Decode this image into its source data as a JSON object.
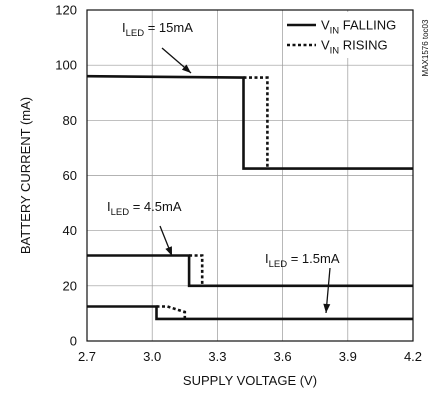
{
  "chart_data": {
    "type": "line",
    "title": "",
    "xlabel": "SUPPLY VOLTAGE (V)",
    "ylabel": "BATTERY CURRENT (mA)",
    "xlim": [
      2.7,
      4.2
    ],
    "ylim": [
      0,
      120
    ],
    "x_ticks": [
      "2.7",
      "3.0",
      "3.3",
      "3.6",
      "3.9",
      "4.2"
    ],
    "y_ticks": [
      "0",
      "20",
      "40",
      "60",
      "80",
      "100",
      "120"
    ],
    "grid": true,
    "legend_position": "top-right",
    "legend": [
      {
        "main": "V",
        "sub": "IN",
        "rest": " FALLING",
        "style": "solid"
      },
      {
        "main": "V",
        "sub": "IN",
        "rest": " RISING",
        "style": "dotted"
      }
    ],
    "part_number": "MAX1576 toc03",
    "annotations": [
      {
        "main": "I",
        "sub": "LED",
        "rest": " = 15mA"
      },
      {
        "main": "I",
        "sub": "LED",
        "rest": " = 4.5mA"
      },
      {
        "main": "I",
        "sub": "LED",
        "rest": " = 1.5mA"
      }
    ],
    "series": [
      {
        "style": "solid",
        "points": [
          [
            2.7,
            96
          ],
          [
            3.42,
            95.5
          ],
          [
            3.42,
            62.5
          ],
          [
            4.2,
            62.5
          ]
        ]
      },
      {
        "style": "dotted",
        "points": [
          [
            3.42,
            95.5
          ],
          [
            3.53,
            95.5
          ],
          [
            3.53,
            62.5
          ]
        ]
      },
      {
        "style": "solid",
        "points": [
          [
            2.7,
            31
          ],
          [
            3.17,
            31
          ],
          [
            3.17,
            20
          ],
          [
            4.2,
            20
          ]
        ]
      },
      {
        "style": "dotted",
        "points": [
          [
            3.17,
            31
          ],
          [
            3.23,
            31
          ],
          [
            3.23,
            20
          ]
        ]
      },
      {
        "style": "solid",
        "points": [
          [
            2.7,
            12.5
          ],
          [
            3.02,
            12.5
          ],
          [
            3.02,
            8
          ],
          [
            4.2,
            8
          ]
        ]
      },
      {
        "style": "dotted",
        "points": [
          [
            3.02,
            12.5
          ],
          [
            3.07,
            12.5
          ],
          [
            3.15,
            10.5
          ],
          [
            3.15,
            8
          ]
        ]
      }
    ]
  }
}
